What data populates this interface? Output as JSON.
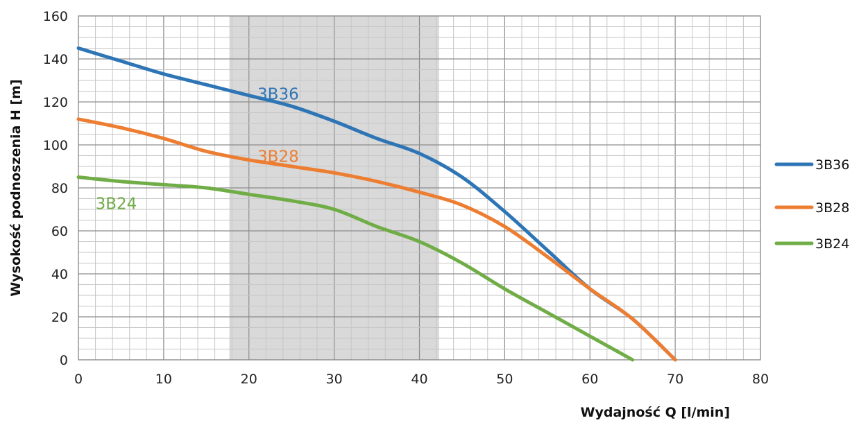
{
  "chart_data": {
    "type": "line",
    "xlabel": "Wydajność Q [l/min]",
    "ylabel": "Wysokość podnoszenia H [m]",
    "xlim": [
      0,
      80
    ],
    "ylim": [
      0,
      160
    ],
    "xticks": [
      "0",
      "10",
      "20",
      "30",
      "40",
      "50",
      "60",
      "70",
      "80"
    ],
    "yticks": [
      "0",
      "20",
      "40",
      "60",
      "80",
      "100",
      "120",
      "140",
      "160"
    ],
    "grid": true,
    "legend": "right",
    "highlight_band": {
      "x_from": 17.7,
      "x_to": 42.3,
      "color": "#d9d9d9"
    },
    "series": [
      {
        "name": "3B36",
        "color": "#2e75b6",
        "label": "3B36",
        "x": [
          0,
          5,
          10,
          15,
          20,
          25,
          30,
          35,
          40,
          45,
          50,
          55,
          60,
          65,
          70
        ],
        "y": [
          145,
          139,
          133,
          128,
          123,
          118,
          111,
          103,
          96,
          85,
          69,
          51,
          33,
          19,
          0
        ]
      },
      {
        "name": "3B28",
        "color": "#ed7d31",
        "label": "3B28",
        "x": [
          0,
          5,
          10,
          15,
          20,
          25,
          30,
          35,
          40,
          45,
          50,
          55,
          60,
          65,
          70
        ],
        "y": [
          112,
          108,
          103,
          97,
          93,
          90,
          87,
          83,
          78,
          72,
          62,
          48,
          33,
          19,
          0
        ]
      },
      {
        "name": "3B24",
        "color": "#70ad47",
        "label": "3B24",
        "x": [
          0,
          5,
          10,
          15,
          20,
          25,
          30,
          35,
          40,
          45,
          50,
          55,
          60,
          65
        ],
        "y": [
          85,
          83,
          81.5,
          80,
          77,
          74,
          70,
          62,
          55,
          45,
          33,
          22,
          11,
          0
        ]
      }
    ]
  }
}
